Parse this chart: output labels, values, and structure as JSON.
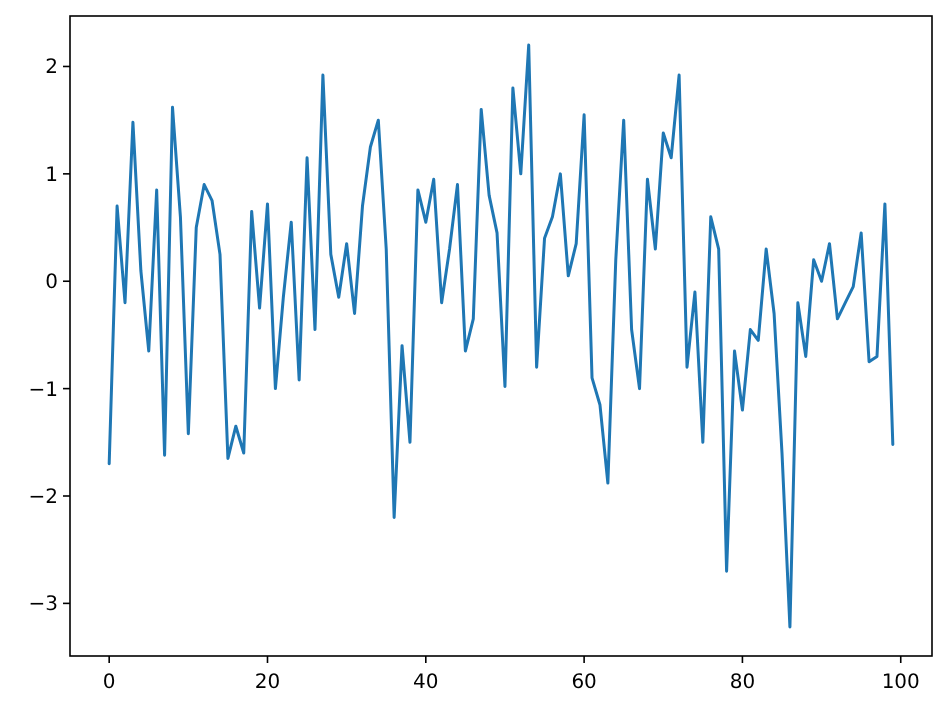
{
  "chart_data": {
    "type": "line",
    "x": [
      0,
      1,
      2,
      3,
      4,
      5,
      6,
      7,
      8,
      9,
      10,
      11,
      12,
      13,
      14,
      15,
      16,
      17,
      18,
      19,
      20,
      21,
      22,
      23,
      24,
      25,
      26,
      27,
      28,
      29,
      30,
      31,
      32,
      33,
      34,
      35,
      36,
      37,
      38,
      39,
      40,
      41,
      42,
      43,
      44,
      45,
      46,
      47,
      48,
      49,
      50,
      51,
      52,
      53,
      54,
      55,
      56,
      57,
      58,
      59,
      60,
      61,
      62,
      63,
      64,
      65,
      66,
      67,
      68,
      69,
      70,
      71,
      72,
      73,
      74,
      75,
      76,
      77,
      78,
      79,
      80,
      81,
      82,
      83,
      84,
      85,
      86,
      87,
      88,
      89,
      90,
      91,
      92,
      93,
      94,
      95,
      96,
      97,
      98,
      99
    ],
    "series": [
      {
        "color": "#1f77b4",
        "values": [
          -1.7,
          0.7,
          -0.2,
          1.48,
          0.1,
          -0.65,
          0.85,
          -1.62,
          1.62,
          0.6,
          -1.42,
          0.5,
          0.9,
          0.75,
          0.25,
          -1.65,
          -1.35,
          -1.6,
          0.65,
          -0.25,
          0.72,
          -1.0,
          -0.15,
          0.55,
          -0.92,
          1.15,
          -0.45,
          1.92,
          0.25,
          -0.15,
          0.35,
          -0.3,
          0.7,
          1.25,
          1.5,
          0.3,
          -2.2,
          -0.6,
          -1.5,
          0.85,
          0.55,
          0.95,
          -0.2,
          0.3,
          0.9,
          -0.65,
          -0.35,
          1.6,
          0.8,
          0.45,
          -0.98,
          1.8,
          1.0,
          2.2,
          -0.8,
          0.4,
          0.6,
          1.0,
          0.05,
          0.35,
          1.55,
          -0.9,
          -1.15,
          -1.88,
          0.2,
          1.5,
          -0.45,
          -1.0,
          0.95,
          0.3,
          1.38,
          1.15,
          1.92,
          -0.8,
          -0.1,
          -1.5,
          0.6,
          0.3,
          -2.7,
          -0.65,
          -1.2,
          -0.45,
          -0.55,
          0.3,
          -0.3,
          -1.6,
          -3.22,
          -0.2,
          -0.7,
          0.2,
          0.0,
          0.35,
          -0.35,
          -0.2,
          -0.05,
          0.45,
          -0.75,
          -0.7,
          0.72,
          -1.52
        ]
      }
    ],
    "xlim": [
      -4.95,
      103.95
    ],
    "ylim": [
      -3.49,
      2.47
    ],
    "xticks": [
      0,
      20,
      40,
      60,
      80,
      100
    ],
    "yticks": [
      -3,
      -2,
      -1,
      0,
      1,
      2
    ],
    "grid": false,
    "marker": "none",
    "line_style": "solid"
  }
}
